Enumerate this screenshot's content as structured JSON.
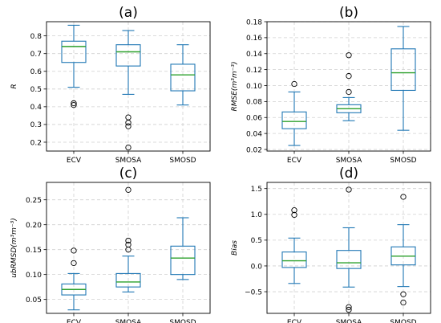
{
  "chart_data": [
    {
      "type": "boxplot",
      "panel_label": "(a)",
      "ylabel": "R",
      "categories": [
        "ECV",
        "SMOSA",
        "SMOSD"
      ],
      "ylim": [
        0.15,
        0.88
      ],
      "yticks": [
        "0.2",
        "0.3",
        "0.4",
        "0.5",
        "0.6",
        "0.7",
        "0.8"
      ],
      "ytick_values": [
        0.2,
        0.3,
        0.4,
        0.5,
        0.6,
        0.7,
        0.8
      ],
      "grid": true,
      "boxes": [
        {
          "whisker_low": 0.51,
          "q1": 0.65,
          "median": 0.74,
          "q3": 0.77,
          "whisker_high": 0.86,
          "outliers": [
            0.42,
            0.41
          ]
        },
        {
          "whisker_low": 0.47,
          "q1": 0.63,
          "median": 0.71,
          "q3": 0.75,
          "whisker_high": 0.83,
          "outliers": [
            0.34,
            0.31,
            0.29,
            0.17
          ]
        },
        {
          "whisker_low": 0.41,
          "q1": 0.49,
          "median": 0.58,
          "q3": 0.64,
          "whisker_high": 0.75,
          "outliers": []
        }
      ]
    },
    {
      "type": "boxplot",
      "panel_label": "(b)",
      "ylabel": "RMSE(m³m⁻³)",
      "categories": [
        "ECV",
        "SMOSA",
        "SMOSD"
      ],
      "ylim": [
        0.018,
        0.18
      ],
      "yticks": [
        "0.02",
        "0.04",
        "0.06",
        "0.08",
        "0.10",
        "0.12",
        "0.14",
        "0.16",
        "0.18"
      ],
      "ytick_values": [
        0.02,
        0.04,
        0.06,
        0.08,
        0.1,
        0.12,
        0.14,
        0.16,
        0.18
      ],
      "grid": true,
      "boxes": [
        {
          "whisker_low": 0.025,
          "q1": 0.046,
          "median": 0.055,
          "q3": 0.067,
          "whisker_high": 0.092,
          "outliers": [
            0.102
          ]
        },
        {
          "whisker_low": 0.056,
          "q1": 0.066,
          "median": 0.071,
          "q3": 0.076,
          "whisker_high": 0.085,
          "outliers": [
            0.092,
            0.112,
            0.138
          ]
        },
        {
          "whisker_low": 0.044,
          "q1": 0.094,
          "median": 0.116,
          "q3": 0.146,
          "whisker_high": 0.174,
          "outliers": []
        }
      ]
    },
    {
      "type": "boxplot",
      "panel_label": "(c)",
      "ylabel": "ubRMSD(m³m⁻³)",
      "categories": [
        "ECV",
        "SMOSA",
        "SMOSD"
      ],
      "ylim": [
        0.022,
        0.285
      ],
      "yticks": [
        "0.05",
        "0.10",
        "0.15",
        "0.20",
        "0.25"
      ],
      "ytick_values": [
        0.05,
        0.1,
        0.15,
        0.2,
        0.25
      ],
      "grid": true,
      "boxes": [
        {
          "whisker_low": 0.029,
          "q1": 0.059,
          "median": 0.07,
          "q3": 0.081,
          "whisker_high": 0.102,
          "outliers": [
            0.123,
            0.148
          ]
        },
        {
          "whisker_low": 0.065,
          "q1": 0.075,
          "median": 0.085,
          "q3": 0.102,
          "whisker_high": 0.137,
          "outliers": [
            0.15,
            0.16,
            0.168,
            0.27
          ]
        },
        {
          "whisker_low": 0.09,
          "q1": 0.1,
          "median": 0.133,
          "q3": 0.157,
          "whisker_high": 0.214,
          "outliers": []
        }
      ]
    },
    {
      "type": "boxplot",
      "panel_label": "(d)",
      "ylabel": "Bias",
      "categories": [
        "ECV",
        "SMOSA",
        "SMOSD"
      ],
      "ylim": [
        -0.92,
        1.62
      ],
      "yticks": [
        "−0.5",
        "0.0",
        "0.5",
        "1.0",
        "1.5"
      ],
      "ytick_values": [
        -0.5,
        0.0,
        0.5,
        1.0,
        1.5
      ],
      "grid": true,
      "boxes": [
        {
          "whisker_low": -0.34,
          "q1": -0.03,
          "median": 0.1,
          "q3": 0.27,
          "whisker_high": 0.54,
          "outliers": [
            0.99,
            1.08
          ]
        },
        {
          "whisker_low": -0.41,
          "q1": -0.05,
          "median": 0.06,
          "q3": 0.3,
          "whisker_high": 0.74,
          "outliers": [
            1.48,
            -0.8,
            -0.85
          ]
        },
        {
          "whisker_low": -0.4,
          "q1": 0.02,
          "median": 0.19,
          "q3": 0.37,
          "whisker_high": 0.8,
          "outliers": [
            1.34,
            -0.55,
            -0.71
          ]
        }
      ]
    }
  ],
  "colors": {
    "box": "#1f77b4",
    "median": "#2ca02c",
    "grid": "#d0d0d0",
    "axis": "#000000"
  }
}
